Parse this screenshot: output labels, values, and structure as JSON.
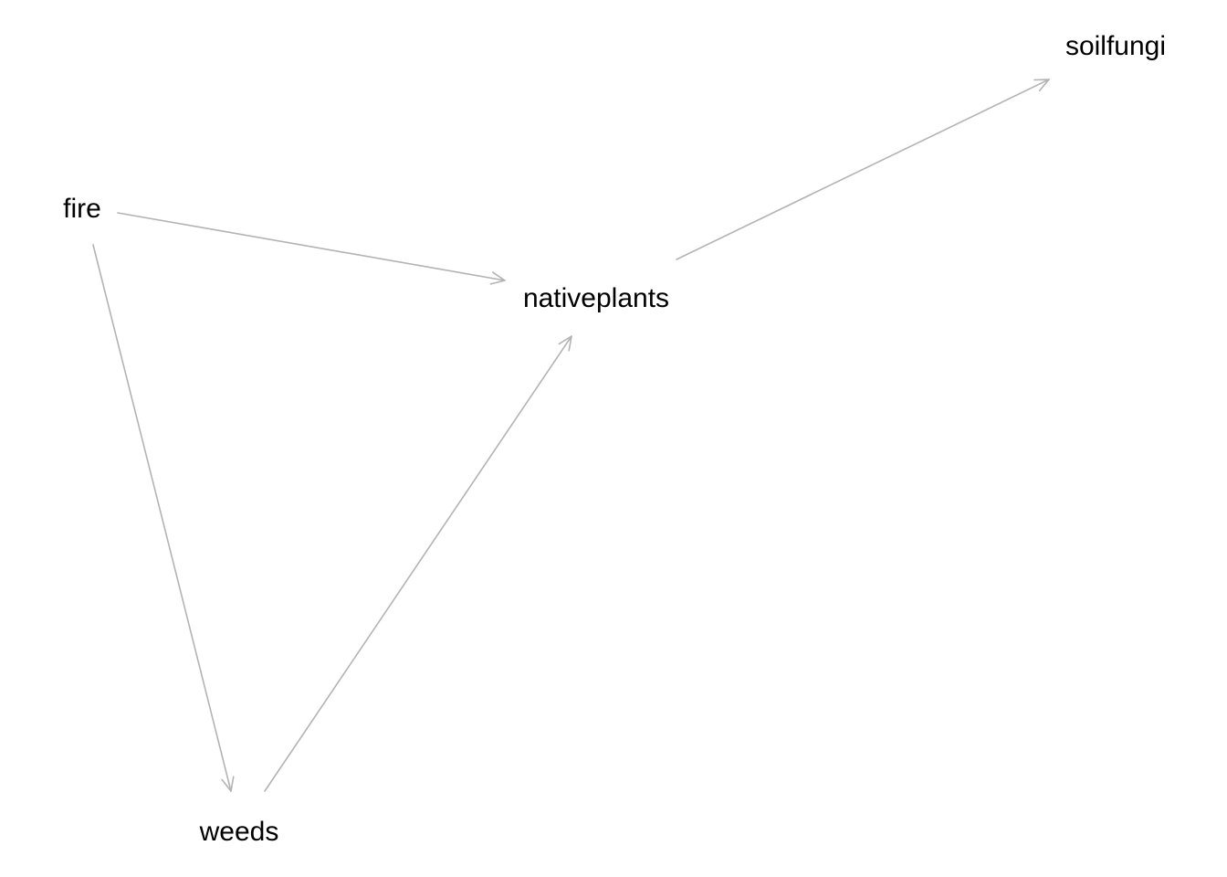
{
  "diagram": {
    "type": "directed-acyclic-graph",
    "edge_color": "#b3b3b3",
    "nodes": [
      {
        "id": "fire",
        "label": "fire"
      },
      {
        "id": "nativeplants",
        "label": "nativeplants"
      },
      {
        "id": "weeds",
        "label": "weeds"
      },
      {
        "id": "soilfungi",
        "label": "soilfungi"
      }
    ],
    "edges": [
      {
        "from": "fire",
        "to": "nativeplants"
      },
      {
        "from": "fire",
        "to": "weeds"
      },
      {
        "from": "weeds",
        "to": "nativeplants"
      },
      {
        "from": "nativeplants",
        "to": "soilfungi"
      }
    ]
  }
}
